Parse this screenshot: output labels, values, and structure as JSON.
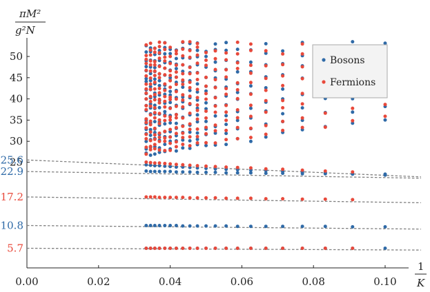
{
  "chart_data": {
    "type": "scatter",
    "title": "",
    "xlabel": "1/K",
    "ylabel": "πM²/(g²N)",
    "xlim": [
      0.0,
      0.11
    ],
    "ylim": [
      0,
      53
    ],
    "x_ticks": [
      "0.00",
      "0.02",
      "0.04",
      "0.06",
      "0.08",
      "0.10"
    ],
    "y_ticks": [
      "25",
      "30",
      "35",
      "40",
      "45",
      "50"
    ],
    "grid": false,
    "legend_position": "top-right",
    "colors": {
      "Bosons": "#2f6aa7",
      "Fermions": "#e8493b",
      "dashed": "#808080"
    },
    "series": [
      {
        "name": "Bosons",
        "x": [
          0.0333,
          0.0345,
          0.0357,
          0.037,
          0.0385,
          0.04,
          0.0417,
          0.0435,
          0.0455,
          0.0476,
          0.05,
          0.0526,
          0.0556,
          0.0588,
          0.0625,
          0.0667,
          0.0714,
          0.0769,
          0.0833,
          0.0909,
          0.1
        ],
        "low_levels": [
          [
            5.7,
            5.7,
            5.7,
            5.7,
            5.7,
            5.7,
            5.7,
            5.7,
            5.7,
            5.7,
            5.7,
            5.7,
            5.7,
            5.7,
            5.7,
            5.7,
            5.7,
            5.7,
            5.7,
            5.7,
            5.7
          ],
          [
            10.8,
            10.8,
            10.8,
            10.8,
            10.8,
            10.8,
            10.8,
            10.7,
            10.7,
            10.7,
            10.7,
            10.7,
            10.7,
            10.6,
            10.6,
            10.6,
            10.6,
            10.6,
            10.6,
            10.5,
            10.5
          ],
          [
            23.0,
            22.9,
            22.9,
            22.9,
            22.9,
            22.9,
            22.8,
            22.8,
            22.8,
            22.7,
            22.7,
            22.7,
            22.6,
            22.6,
            22.6,
            22.5,
            22.5,
            22.4,
            22.4,
            22.3,
            22.3
          ],
          [
            24.4,
            24.3,
            24.2,
            24.2,
            24.1,
            24.0,
            23.9,
            23.9,
            23.8,
            23.7,
            23.6,
            23.5,
            23.4,
            23.3,
            23.2,
            23.1,
            22.9,
            22.8,
            22.6,
            22.4,
            22.1
          ]
        ]
      },
      {
        "name": "Fermions",
        "x": [
          0.0333,
          0.0345,
          0.0357,
          0.037,
          0.0385,
          0.04,
          0.0417,
          0.0435,
          0.0455,
          0.0476,
          0.05,
          0.0526,
          0.0556,
          0.0588,
          0.0625,
          0.0667,
          0.0714,
          0.0769,
          0.0833,
          0.0909,
          0.1
        ],
        "low_levels": [
          [
            5.7,
            5.7,
            5.7,
            5.7,
            5.7,
            5.7,
            5.7,
            5.7,
            5.7,
            5.7,
            5.7,
            5.7,
            5.7,
            5.7,
            5.7,
            5.7,
            5.7,
            5.7,
            5.7,
            5.7,
            null
          ],
          [
            17.2,
            17.2,
            17.2,
            17.1,
            17.1,
            17.1,
            17.1,
            17.1,
            17.0,
            17.0,
            17.0,
            17.0,
            16.9,
            16.9,
            16.9,
            16.8,
            16.8,
            16.7,
            16.7,
            16.6,
            null
          ],
          [
            25.0,
            24.9,
            24.8,
            24.8,
            24.7,
            24.6,
            24.5,
            24.4,
            24.3,
            24.2,
            24.1,
            24.0,
            23.9,
            23.8,
            23.7,
            23.5,
            23.4,
            23.2,
            23.0,
            22.8,
            null
          ]
        ]
      }
    ],
    "dashed_extrapolations": [
      {
        "label": "25.6",
        "color": "#2f6aa7",
        "intercept": 25.6,
        "y_at_0.11": 21.7
      },
      {
        "label": "22.9",
        "color": "#2f6aa7",
        "intercept": 22.9,
        "y_at_0.11": 21.4
      },
      {
        "label": "17.2",
        "color": "#e8493b",
        "intercept": 17.2,
        "y_at_0.11": 15.9
      },
      {
        "label": "10.8",
        "color": "#2f6aa7",
        "intercept": 10.8,
        "y_at_0.11": 10.0
      },
      {
        "label": "5.7",
        "color": "#e8493b",
        "intercept": 5.7,
        "y_at_0.11": 5.3
      }
    ]
  }
}
